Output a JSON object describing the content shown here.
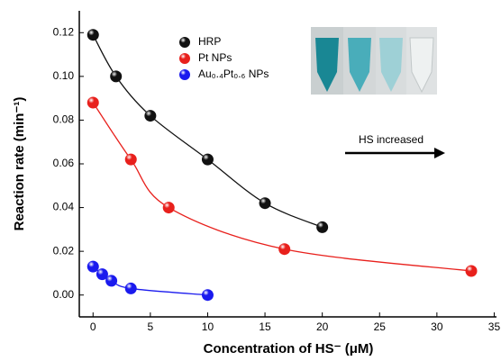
{
  "chart_data": {
    "type": "scatter",
    "x_label": "Concentration of HS⁻ (μM)",
    "y_label": "Reaction rate (min⁻¹)",
    "xlim": [
      -1.2,
      35.2
    ],
    "xticks": [
      0,
      5,
      10,
      15,
      20,
      25,
      30,
      35
    ],
    "ylim": [
      -0.01,
      0.13
    ],
    "yticks": [
      {
        "value": 0,
        "label": "0.00"
      },
      {
        "value": 0.02,
        "label": "0.02"
      },
      {
        "value": 0.04,
        "label": "0.04"
      },
      {
        "value": 0.06,
        "label": "0.06"
      },
      {
        "value": 0.08,
        "label": "0.08"
      },
      {
        "value": 0.1,
        "label": "0.10"
      },
      {
        "value": 0.12,
        "label": "0.12"
      }
    ],
    "series": [
      {
        "name": "HRP",
        "color": "#111111",
        "x": [
          0,
          2,
          5,
          10,
          15,
          20
        ],
        "values": [
          0.119,
          0.1,
          0.082,
          0.062,
          0.042,
          0.031
        ]
      },
      {
        "name": "Pt NPs",
        "color": "#e8201c",
        "x": [
          0,
          3.3,
          6.6,
          16.7,
          33
        ],
        "values": [
          0.088,
          0.062,
          0.04,
          0.021,
          0.011
        ]
      },
      {
        "name": "Au₀.₄Pt₀.₆ NPs",
        "color": "#1a1aee",
        "x": [
          0,
          0.8,
          1.6,
          3.3,
          10
        ],
        "values": [
          0.013,
          0.0095,
          0.0065,
          0.003,
          0.0
        ]
      }
    ],
    "annotation": "HS increased"
  }
}
